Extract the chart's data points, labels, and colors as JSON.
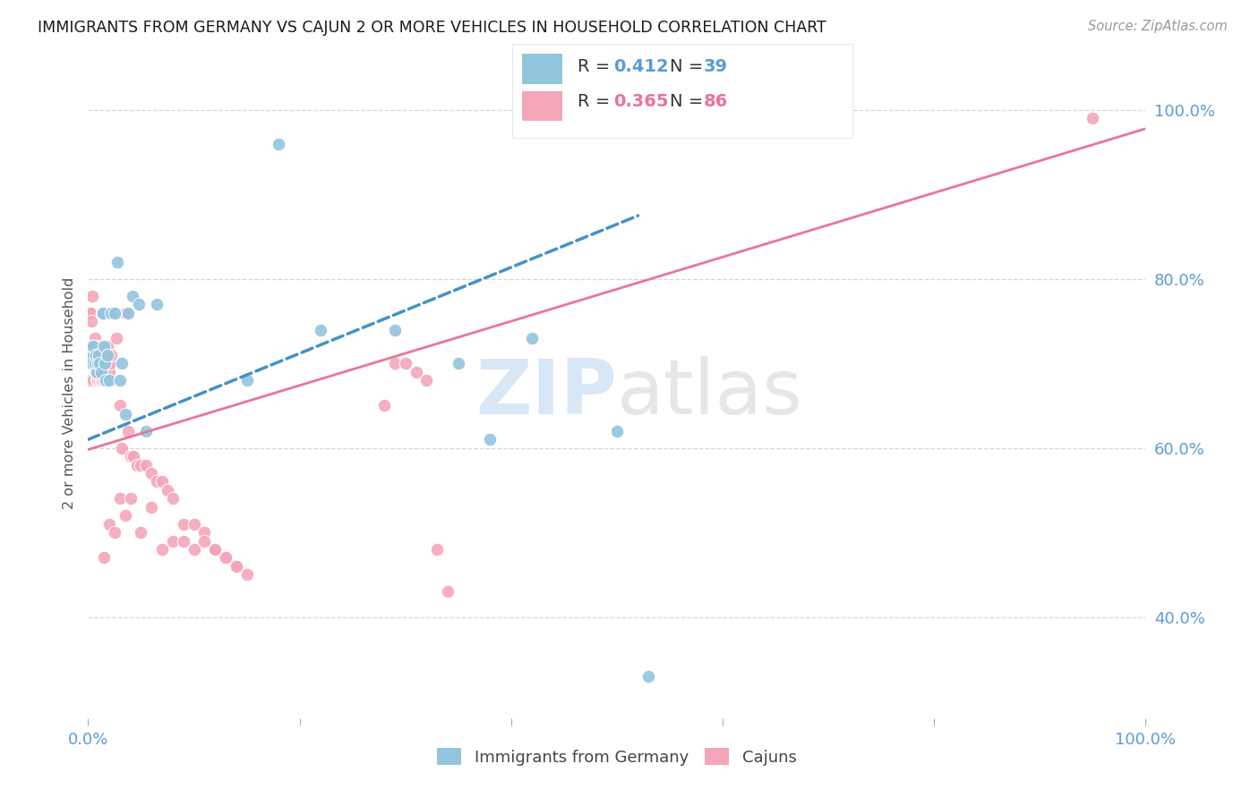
{
  "title": "IMMIGRANTS FROM GERMANY VS CAJUN 2 OR MORE VEHICLES IN HOUSEHOLD CORRELATION CHART",
  "source": "Source: ZipAtlas.com",
  "ylabel": "2 or more Vehicles in Household",
  "xlim": [
    0.0,
    1.0
  ],
  "ylim": [
    0.28,
    1.05
  ],
  "watermark_zip": "ZIP",
  "watermark_atlas": "atlas",
  "blue_color": "#92c5de",
  "pink_color": "#f4a6b8",
  "line_blue_color": "#4393c3",
  "line_pink_color": "#e8759a",
  "title_color": "#1a1a1a",
  "axis_color": "#5b9bd5",
  "ylabel_color": "#555555",
  "grid_color": "#cccccc",
  "source_color": "#999999",
  "legend_r_color": "#333333",
  "legend_val_blue": "#5b9bd5",
  "legend_val_pink": "#e8759a",
  "germany_x": [
    0.001,
    0.002,
    0.003,
    0.004,
    0.005,
    0.006,
    0.007,
    0.008,
    0.009,
    0.01,
    0.011,
    0.012,
    0.013,
    0.014,
    0.015,
    0.016,
    0.017,
    0.018,
    0.02,
    0.022,
    0.025,
    0.028,
    0.03,
    0.032,
    0.035,
    0.038,
    0.042,
    0.048,
    0.055,
    0.065,
    0.15,
    0.18,
    0.22,
    0.29,
    0.35,
    0.38,
    0.42,
    0.5,
    0.53
  ],
  "germany_y": [
    0.7,
    0.71,
    0.72,
    0.7,
    0.72,
    0.7,
    0.71,
    0.69,
    0.7,
    0.71,
    0.7,
    0.69,
    0.76,
    0.76,
    0.72,
    0.7,
    0.68,
    0.71,
    0.68,
    0.76,
    0.76,
    0.82,
    0.68,
    0.7,
    0.64,
    0.76,
    0.78,
    0.77,
    0.62,
    0.77,
    0.68,
    0.96,
    0.74,
    0.74,
    0.7,
    0.61,
    0.73,
    0.62,
    0.33
  ],
  "cajun_x": [
    0.001,
    0.002,
    0.002,
    0.003,
    0.003,
    0.004,
    0.004,
    0.005,
    0.005,
    0.006,
    0.006,
    0.007,
    0.007,
    0.008,
    0.008,
    0.009,
    0.009,
    0.01,
    0.01,
    0.011,
    0.011,
    0.012,
    0.012,
    0.013,
    0.013,
    0.014,
    0.015,
    0.015,
    0.016,
    0.016,
    0.017,
    0.018,
    0.019,
    0.02,
    0.021,
    0.022,
    0.023,
    0.025,
    0.027,
    0.03,
    0.032,
    0.035,
    0.038,
    0.04,
    0.043,
    0.046,
    0.05,
    0.055,
    0.06,
    0.065,
    0.07,
    0.075,
    0.08,
    0.09,
    0.1,
    0.11,
    0.12,
    0.13,
    0.14,
    0.15,
    0.015,
    0.02,
    0.025,
    0.03,
    0.035,
    0.04,
    0.05,
    0.06,
    0.07,
    0.08,
    0.09,
    0.1,
    0.11,
    0.12,
    0.13,
    0.14,
    0.28,
    0.29,
    0.3,
    0.31,
    0.32,
    0.33,
    0.34,
    0.95
  ],
  "cajun_y": [
    0.68,
    0.76,
    0.76,
    0.7,
    0.75,
    0.78,
    0.71,
    0.68,
    0.72,
    0.7,
    0.73,
    0.69,
    0.71,
    0.68,
    0.72,
    0.68,
    0.7,
    0.69,
    0.71,
    0.68,
    0.7,
    0.68,
    0.72,
    0.68,
    0.71,
    0.7,
    0.68,
    0.7,
    0.7,
    0.72,
    0.68,
    0.72,
    0.7,
    0.69,
    0.7,
    0.71,
    0.76,
    0.76,
    0.73,
    0.65,
    0.6,
    0.76,
    0.62,
    0.59,
    0.59,
    0.58,
    0.58,
    0.58,
    0.57,
    0.56,
    0.56,
    0.55,
    0.54,
    0.51,
    0.51,
    0.5,
    0.48,
    0.47,
    0.46,
    0.45,
    0.47,
    0.51,
    0.5,
    0.54,
    0.52,
    0.54,
    0.5,
    0.53,
    0.48,
    0.49,
    0.49,
    0.48,
    0.49,
    0.48,
    0.47,
    0.46,
    0.65,
    0.7,
    0.7,
    0.69,
    0.68,
    0.48,
    0.43,
    0.99
  ],
  "germany_line_x": [
    0.0,
    0.52
  ],
  "germany_line_y": [
    0.61,
    0.875
  ],
  "cajun_line_x": [
    0.0,
    1.0
  ],
  "cajun_line_y": [
    0.598,
    0.978
  ],
  "x_ticks": [
    0.0,
    0.2,
    0.4,
    0.6,
    0.8,
    1.0
  ],
  "y_ticks": [
    0.4,
    0.6,
    0.8,
    1.0
  ],
  "x_tick_labels": [
    "0.0%",
    "",
    "",
    "",
    "",
    "100.0%"
  ],
  "y_tick_labels": [
    "40.0%",
    "60.0%",
    "80.0%",
    "100.0%"
  ]
}
